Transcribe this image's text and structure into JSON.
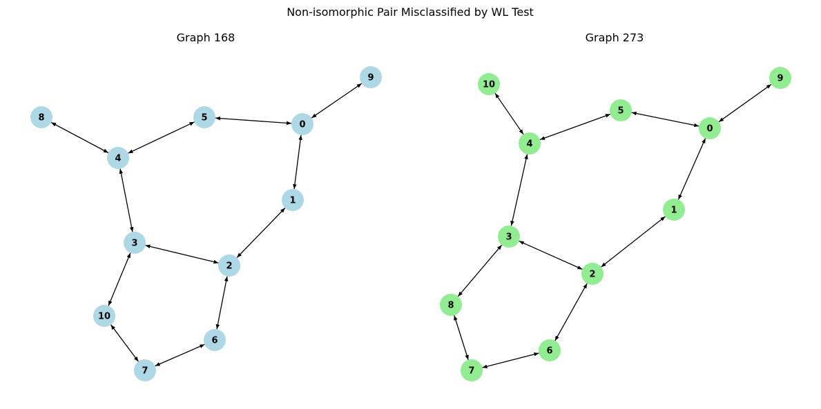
{
  "figure": {
    "title": "Non-isomorphic Pair Misclassified by WL Test"
  },
  "graphs": [
    {
      "title": "Graph 168",
      "node_color": "#add8e6",
      "edge_color": "#000000",
      "directed_both_ways": true,
      "nodes": [
        "0",
        "1",
        "2",
        "3",
        "4",
        "5",
        "6",
        "7",
        "8",
        "9",
        "10"
      ],
      "edges": [
        [
          "0",
          "9"
        ],
        [
          "0",
          "5"
        ],
        [
          "0",
          "1"
        ],
        [
          "1",
          "2"
        ],
        [
          "2",
          "3"
        ],
        [
          "2",
          "6"
        ],
        [
          "3",
          "4"
        ],
        [
          "3",
          "10"
        ],
        [
          "4",
          "5"
        ],
        [
          "4",
          "8"
        ],
        [
          "6",
          "7"
        ],
        [
          "7",
          "10"
        ]
      ]
    },
    {
      "title": "Graph 273",
      "node_color": "#90ee90",
      "edge_color": "#000000",
      "directed_both_ways": true,
      "nodes": [
        "0",
        "1",
        "2",
        "3",
        "4",
        "5",
        "6",
        "7",
        "8",
        "9",
        "10"
      ],
      "edges": [
        [
          "0",
          "9"
        ],
        [
          "0",
          "5"
        ],
        [
          "0",
          "1"
        ],
        [
          "1",
          "2"
        ],
        [
          "2",
          "3"
        ],
        [
          "2",
          "6"
        ],
        [
          "3",
          "4"
        ],
        [
          "3",
          "8"
        ],
        [
          "4",
          "5"
        ],
        [
          "4",
          "10"
        ],
        [
          "6",
          "7"
        ],
        [
          "7",
          "8"
        ]
      ]
    }
  ]
}
